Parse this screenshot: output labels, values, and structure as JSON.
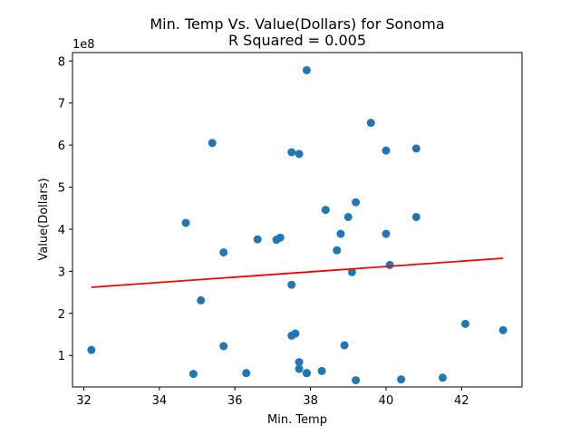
{
  "chart_data": {
    "type": "scatter",
    "title": "Min. Temp Vs. Value(Dollars) for Sonoma",
    "subtitle": "R Squared =  0.005",
    "xlabel": "Min. Temp",
    "ylabel": "Value(Dollars)",
    "y_offset_label": "1e8",
    "xlim": [
      31.7,
      43.6
    ],
    "ylim": [
      0.25,
      8.2
    ],
    "y_scale": 100000000,
    "x_ticks": [
      32,
      34,
      36,
      38,
      40,
      42
    ],
    "y_ticks": [
      1,
      2,
      3,
      4,
      5,
      6,
      7,
      8
    ],
    "grid": false,
    "colors": {
      "points": "#1f77b4",
      "regression": "#ff0000"
    },
    "points": {
      "x": [
        32.2,
        34.7,
        34.9,
        35.1,
        35.4,
        35.7,
        35.7,
        36.3,
        36.6,
        37.1,
        37.2,
        37.5,
        37.5,
        37.5,
        37.6,
        37.7,
        37.7,
        37.7,
        37.9,
        37.9,
        37.9,
        38.3,
        38.4,
        38.7,
        38.8,
        38.9,
        39.0,
        39.1,
        39.2,
        39.2,
        39.6,
        40.0,
        40.0,
        40.1,
        40.4,
        40.8,
        40.8,
        41.5,
        42.1,
        43.1
      ],
      "y": [
        1.13,
        4.15,
        0.56,
        2.31,
        6.05,
        3.45,
        1.22,
        0.58,
        3.76,
        3.75,
        3.8,
        5.83,
        2.68,
        1.47,
        1.52,
        5.79,
        0.84,
        0.68,
        7.78,
        0.58,
        0.58,
        0.63,
        4.46,
        3.5,
        3.89,
        1.24,
        4.29,
        2.98,
        4.64,
        0.41,
        6.53,
        5.87,
        3.89,
        3.15,
        0.43,
        5.92,
        4.29,
        0.47,
        1.75,
        1.6
      ]
    },
    "regression": {
      "x": [
        32.2,
        43.1
      ],
      "y": [
        2.62,
        3.31
      ]
    }
  }
}
